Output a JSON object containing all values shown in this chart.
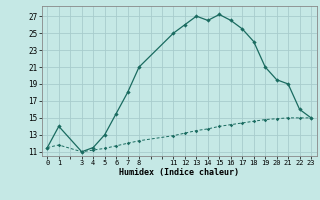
{
  "xlabel": "Humidex (Indice chaleur)",
  "background_color": "#c5e8e5",
  "grid_color": "#a8cccc",
  "line_color": "#1a6b60",
  "ylim": [
    10.5,
    28.2
  ],
  "xlim": [
    -0.5,
    23.5
  ],
  "yticks": [
    11,
    13,
    15,
    17,
    19,
    21,
    23,
    25,
    27
  ],
  "xticks_all": [
    0,
    1,
    2,
    3,
    4,
    5,
    6,
    7,
    8,
    9,
    10,
    11,
    12,
    13,
    14,
    15,
    16,
    17,
    18,
    19,
    20,
    21,
    22,
    23
  ],
  "xtick_labels": [
    "0",
    "1",
    "",
    "3",
    "4",
    "5",
    "6",
    "7",
    "8",
    "",
    "",
    "11",
    "12",
    "13",
    "14",
    "15",
    "16",
    "17",
    "18",
    "19",
    "20",
    "21",
    "22",
    "23"
  ],
  "line1_x": [
    0,
    1,
    3,
    4,
    5,
    6,
    7,
    8,
    11,
    12,
    13,
    14,
    15,
    16,
    17,
    18,
    19,
    20,
    21,
    22,
    23
  ],
  "line1_y": [
    11.5,
    14.0,
    11.0,
    11.5,
    13.0,
    15.5,
    18.0,
    21.0,
    25.0,
    26.0,
    27.0,
    26.5,
    27.2,
    26.5,
    25.5,
    24.0,
    21.0,
    19.5,
    19.0,
    16.0,
    15.0
  ],
  "line2_x": [
    0,
    1,
    3,
    4,
    5,
    6,
    7,
    8,
    11,
    12,
    13,
    14,
    15,
    16,
    17,
    18,
    19,
    20,
    21,
    22,
    23
  ],
  "line2_y": [
    11.5,
    11.8,
    11.0,
    11.2,
    11.4,
    11.7,
    12.0,
    12.3,
    12.9,
    13.2,
    13.5,
    13.7,
    14.0,
    14.2,
    14.4,
    14.6,
    14.8,
    14.9,
    15.0,
    15.0,
    15.0
  ]
}
